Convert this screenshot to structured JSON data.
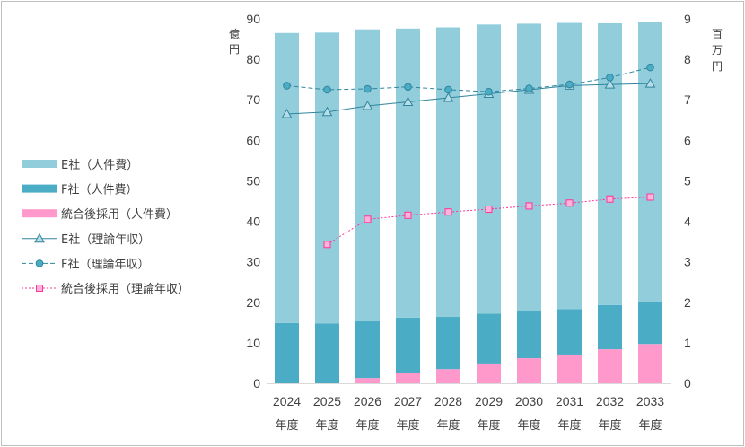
{
  "chart_data": {
    "type": "bar",
    "stacked": true,
    "categories": [
      "2024",
      "2025",
      "2026",
      "2027",
      "2028",
      "2029",
      "2030",
      "2031",
      "2032",
      "2033"
    ],
    "category_suffix": "年度",
    "left_axis": {
      "unit": "億円",
      "ylim": [
        0,
        90
      ],
      "ticks": [
        0,
        10,
        20,
        30,
        40,
        50,
        60,
        70,
        80,
        90
      ]
    },
    "right_axis": {
      "unit": "百万円",
      "ylim": [
        0,
        9
      ],
      "ticks": [
        0,
        1,
        2,
        3,
        4,
        5,
        6,
        7,
        8,
        9
      ]
    },
    "bar_series": [
      {
        "name": "統合後採用（人件費）",
        "color": "#ff99cc",
        "values": [
          0,
          0,
          1.3,
          2.5,
          3.5,
          4.9,
          6.2,
          7.1,
          8.4,
          9.7
        ]
      },
      {
        "name": "F社（人件費）",
        "color": "#4bacc6",
        "values": [
          14.9,
          14.8,
          14.0,
          13.7,
          12.9,
          12.3,
          11.6,
          11.2,
          10.9,
          10.3
        ]
      },
      {
        "name": "E社（人件費）",
        "color": "#92cddc",
        "values": [
          71.6,
          71.8,
          72.1,
          71.4,
          71.5,
          71.4,
          71.0,
          70.7,
          69.6,
          69.2
        ]
      }
    ],
    "line_series": [
      {
        "name": "E社（理論年収）",
        "axis": "right",
        "color": "#31859c",
        "marker": "triangle",
        "dash": "solid",
        "values": [
          6.65,
          6.7,
          6.85,
          6.95,
          7.05,
          7.15,
          7.25,
          7.35,
          7.38,
          7.4
        ]
      },
      {
        "name": "F社（理論年収）",
        "axis": "right",
        "color": "#31859c",
        "marker": "circle",
        "dash": "dashed",
        "values": [
          7.35,
          7.25,
          7.27,
          7.32,
          7.25,
          7.2,
          7.28,
          7.38,
          7.55,
          7.8
        ]
      },
      {
        "name": "統合後採用（理論年収）",
        "axis": "right",
        "color": "#ff3399",
        "marker": "square",
        "dash": "dotted",
        "values": [
          null,
          3.43,
          4.05,
          4.15,
          4.23,
          4.3,
          4.38,
          4.45,
          4.55,
          4.6
        ]
      }
    ],
    "legend": {
      "position": "left",
      "order": [
        "E社（人件費）",
        "F社（人件費）",
        "統合後採用（人件費）",
        "E社（理論年収）",
        "F社（理論年収）",
        "統合後採用（理論年収）"
      ]
    },
    "grid": false
  }
}
